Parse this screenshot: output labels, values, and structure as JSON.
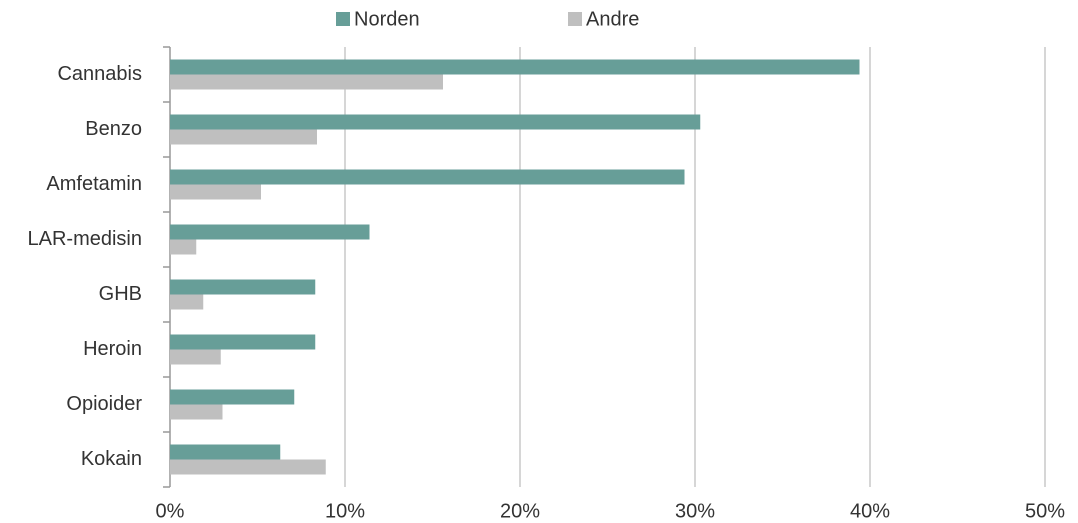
{
  "chart_data": {
    "type": "hbar",
    "categories": [
      "Cannabis",
      "Benzo",
      "Amfetamin",
      "LAR-medisin",
      "GHB",
      "Heroin",
      "Opioider",
      "Kokain"
    ],
    "series": [
      {
        "name": "Norden",
        "color": "#679e98",
        "values": [
          39.4,
          30.3,
          29.4,
          11.4,
          8.3,
          8.3,
          7.1,
          6.3
        ]
      },
      {
        "name": "Andre",
        "color": "#bfbfbf",
        "values": [
          15.6,
          8.4,
          5.2,
          1.5,
          1.9,
          2.9,
          3.0,
          8.9
        ]
      }
    ],
    "xlim": [
      0,
      50
    ],
    "xticks": [
      {
        "value": 0,
        "label": "0%"
      },
      {
        "value": 10,
        "label": "10%"
      },
      {
        "value": 20,
        "label": "20%"
      },
      {
        "value": 30,
        "label": "30%"
      },
      {
        "value": 40,
        "label": "40%"
      },
      {
        "value": 50,
        "label": "50%"
      }
    ],
    "grid": true,
    "legend": "top"
  }
}
